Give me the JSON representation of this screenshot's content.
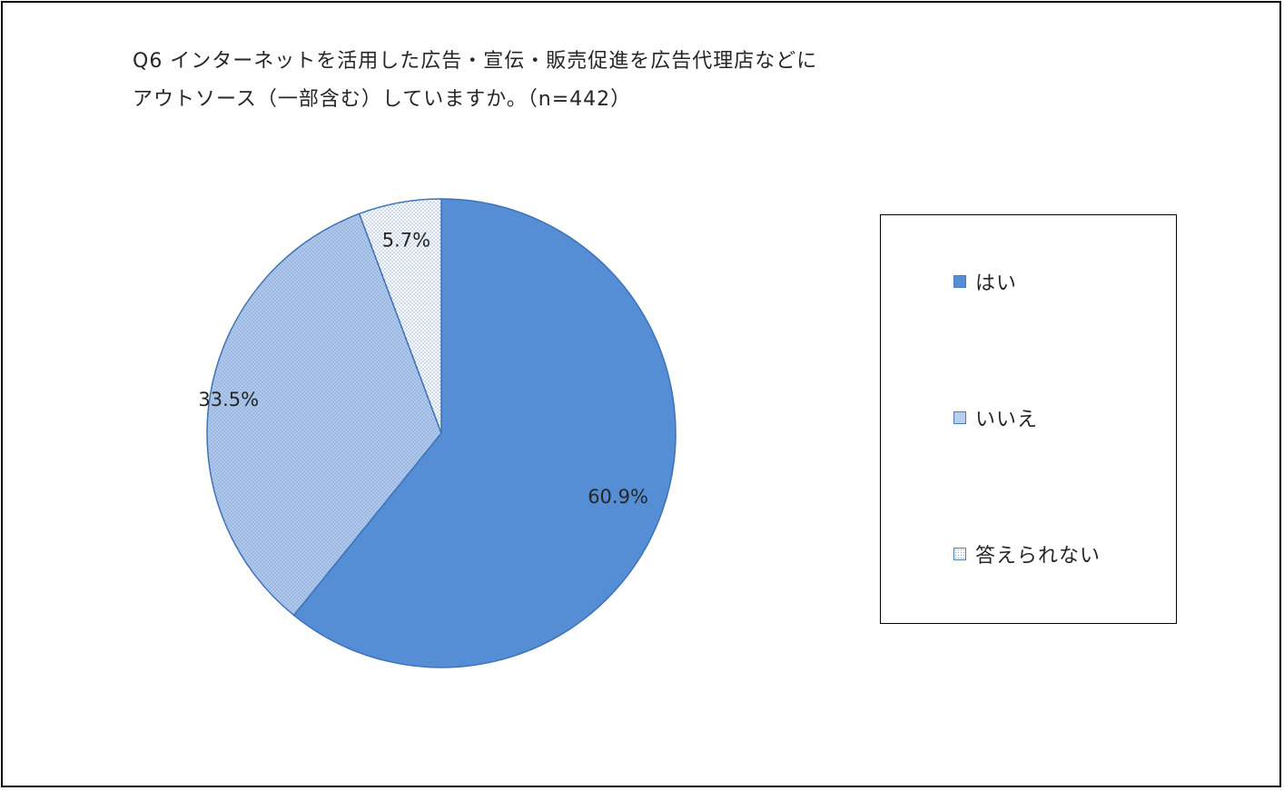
{
  "chart_data": {
    "type": "pie",
    "title_lines": [
      "Q6 インターネットを活用した広告・宣伝・販売促進を広告代理店などに",
      "アウトソース（一部含む）していますか。（n=442）"
    ],
    "categories": [
      "はい",
      "いいえ",
      "答えられない"
    ],
    "values": [
      60.9,
      33.5,
      5.7
    ],
    "labels": [
      "60.9%",
      "33.5%",
      "5.7%"
    ],
    "colors": [
      "#558ed5",
      "#a9c4e8",
      "#e6eef8"
    ],
    "patterns": [
      "solid",
      "fine-crosshatch",
      "dots"
    ],
    "legend_position": "right"
  }
}
